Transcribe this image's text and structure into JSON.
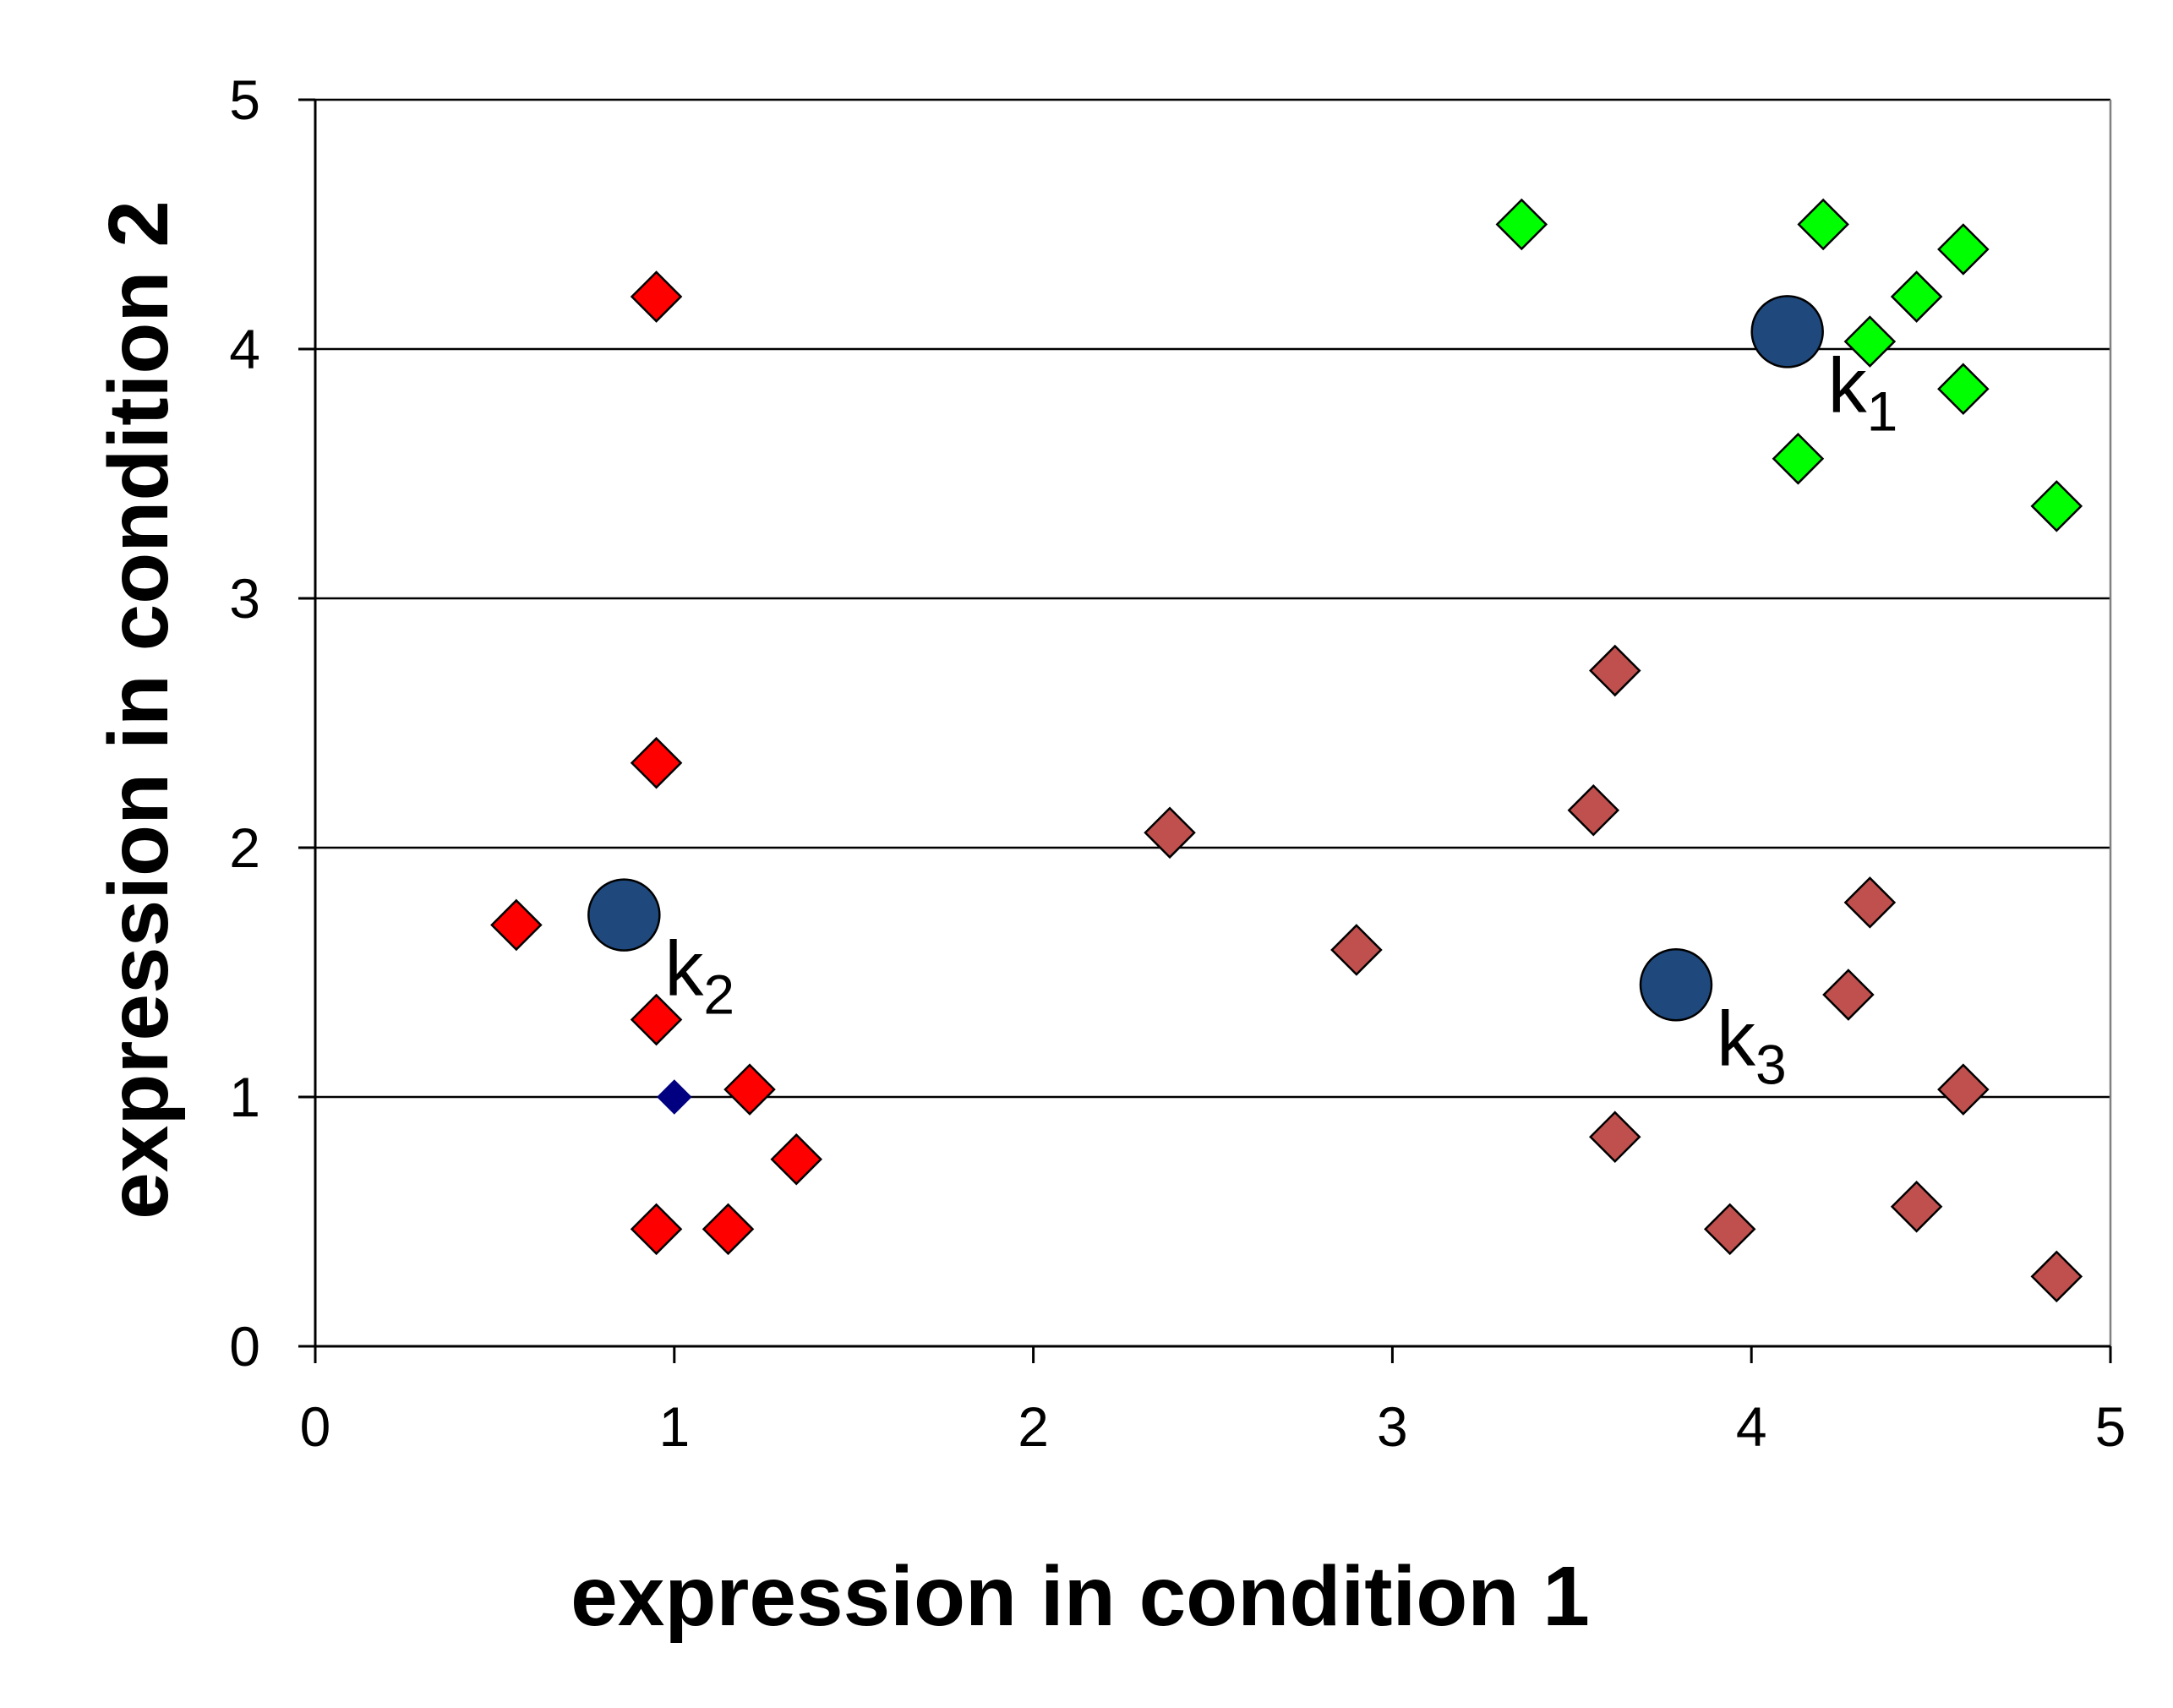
{
  "chart_data": {
    "type": "scatter",
    "title": "",
    "xlabel": "expression in condition 1",
    "ylabel": "expression in condition 2",
    "xlim": [
      0,
      5
    ],
    "ylim": [
      0,
      5
    ],
    "xticks": [
      0,
      1,
      2,
      3,
      4,
      5
    ],
    "yticks": [
      0,
      1,
      2,
      3,
      4,
      5
    ],
    "grid": "horizontal major gridlines",
    "legend": "none",
    "colors": {
      "cluster_k1": "#00ff00",
      "cluster_k2": "#ff0000",
      "cluster_k3": "#c0504d",
      "highlight": "#000080",
      "centroid": "#1f497d"
    },
    "series": [
      {
        "points": [
          [
            3.36,
            4.5
          ],
          [
            4.2,
            4.5
          ],
          [
            4.59,
            4.4
          ],
          [
            4.46,
            4.21
          ],
          [
            4.33,
            4.03
          ],
          [
            4.59,
            3.84
          ],
          [
            4.13,
            3.56
          ],
          [
            4.85,
            3.37
          ]
        ],
        "color": "#00ff00",
        "marker": "diamond"
      },
      {
        "points": [
          [
            0.95,
            4.21
          ],
          [
            0.95,
            2.34
          ],
          [
            0.56,
            1.69
          ],
          [
            0.95,
            1.31
          ],
          [
            1.21,
            1.03
          ],
          [
            1.34,
            0.75
          ],
          [
            0.95,
            0.47
          ],
          [
            1.15,
            0.47
          ]
        ],
        "color": "#ff0000",
        "marker": "diamond"
      },
      {
        "points": [
          [
            3.62,
            2.71
          ],
          [
            3.56,
            2.15
          ],
          [
            2.38,
            2.06
          ],
          [
            2.9,
            1.59
          ],
          [
            4.33,
            1.78
          ],
          [
            4.27,
            1.41
          ],
          [
            4.59,
            1.03
          ],
          [
            3.62,
            0.84
          ],
          [
            4.46,
            0.56
          ],
          [
            3.94,
            0.47
          ],
          [
            4.85,
            0.28
          ]
        ],
        "color": "#c0504d",
        "marker": "diamond"
      },
      {
        "points": [
          [
            1.0,
            1.0
          ]
        ],
        "color": "#000080",
        "marker": "diamond-small"
      }
    ],
    "centroids": [
      {
        "label": "k",
        "sub": "1",
        "x": 4.1,
        "y": 4.07
      },
      {
        "label": "k",
        "sub": "2",
        "x": 0.86,
        "y": 1.73
      },
      {
        "label": "k",
        "sub": "3",
        "x": 3.79,
        "y": 1.45
      }
    ]
  }
}
